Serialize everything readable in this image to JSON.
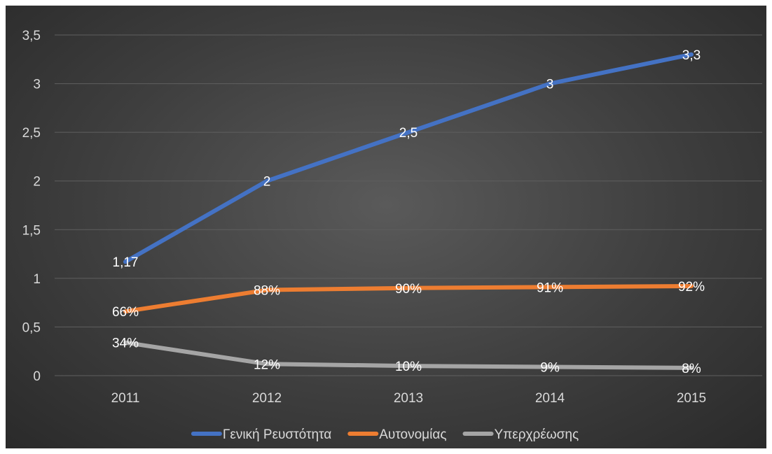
{
  "chart_data": {
    "type": "line",
    "categories": [
      "2011",
      "2012",
      "2013",
      "2014",
      "2015"
    ],
    "ylim": [
      0,
      3.5
    ],
    "yticks": [
      "0",
      "0,5",
      "1",
      "1,5",
      "2",
      "2,5",
      "3",
      "3,5"
    ],
    "grid": true,
    "legend_position": "bottom",
    "series": [
      {
        "name": "Γενική Ρευστότητα",
        "color": "#4472c4",
        "values": [
          1.17,
          2,
          2.5,
          3,
          3.3
        ],
        "labels": [
          "1,17",
          "2",
          "2,5",
          "3",
          "3,3"
        ]
      },
      {
        "name": "Αυτονομίας",
        "color": "#ed7d31",
        "values": [
          0.66,
          0.88,
          0.9,
          0.91,
          0.92
        ],
        "labels": [
          "66%",
          "88%",
          "90%",
          "91%",
          "92%"
        ]
      },
      {
        "name": "Υπερχρέωσης",
        "color": "#a5a5a5",
        "values": [
          0.34,
          0.12,
          0.1,
          0.09,
          0.08
        ],
        "labels": [
          "34%",
          "12%",
          "10%",
          "9%",
          "8%"
        ]
      }
    ]
  }
}
